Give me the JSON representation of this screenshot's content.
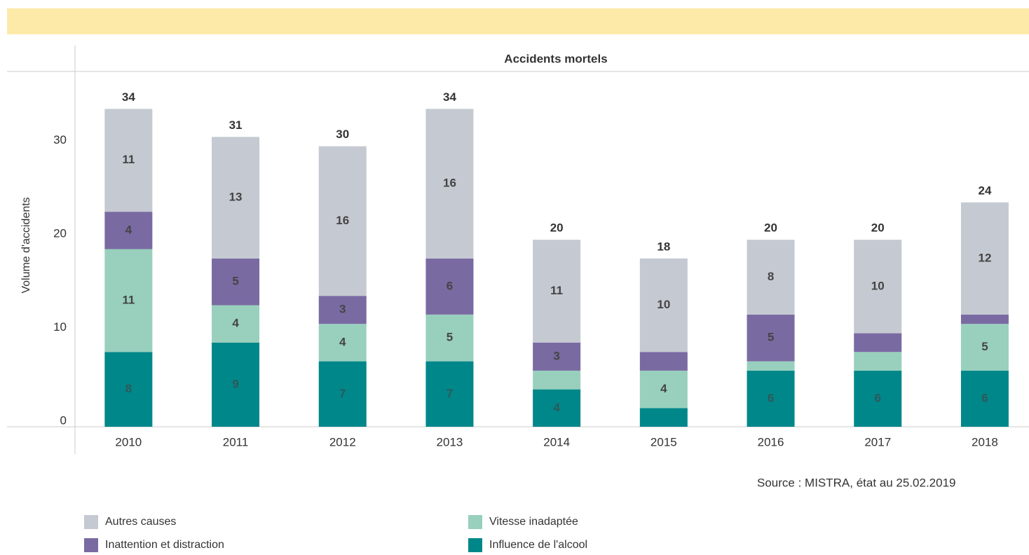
{
  "chart_data": {
    "type": "stacked-bar",
    "title": "Accidents mortels",
    "y_label": "Volume d'accidents",
    "source": "Source : MISTRA, état au 25.02.2019",
    "categories": [
      "2010",
      "2011",
      "2012",
      "2013",
      "2014",
      "2015",
      "2016",
      "2017",
      "2018"
    ],
    "series": [
      {
        "name": "Influence de l'alcool",
        "color": "#00878a",
        "values": [
          8,
          9,
          7,
          7,
          4,
          2,
          6,
          6,
          6
        ],
        "value_labels": [
          "8",
          "9",
          "7",
          "7",
          "4",
          null,
          "6",
          "6",
          "6"
        ]
      },
      {
        "name": "Vitesse inadaptée",
        "color": "#98d0bd",
        "values": [
          11,
          4,
          4,
          5,
          2,
          4,
          1,
          2,
          5
        ],
        "value_labels": [
          "11",
          "4",
          "4",
          "5",
          null,
          "4",
          null,
          null,
          "5"
        ]
      },
      {
        "name": "Inattention et distraction",
        "color": "#7a6aa2",
        "values": [
          4,
          5,
          3,
          6,
          3,
          2,
          5,
          2,
          1
        ],
        "value_labels": [
          "4",
          "5",
          "3",
          "6",
          "3",
          null,
          "5",
          null,
          null
        ]
      },
      {
        "name": "Autres causes",
        "color": "#c5c9d1",
        "values": [
          11,
          13,
          16,
          16,
          11,
          10,
          8,
          10,
          12
        ],
        "value_labels": [
          "11",
          "13",
          "16",
          "16",
          "11",
          "10",
          "8",
          "10",
          "12"
        ]
      }
    ],
    "totals": [
      34,
      31,
      30,
      34,
      20,
      18,
      20,
      20,
      24
    ],
    "ylim": [
      0,
      38
    ],
    "yticks": [
      0,
      10,
      20,
      30
    ]
  }
}
